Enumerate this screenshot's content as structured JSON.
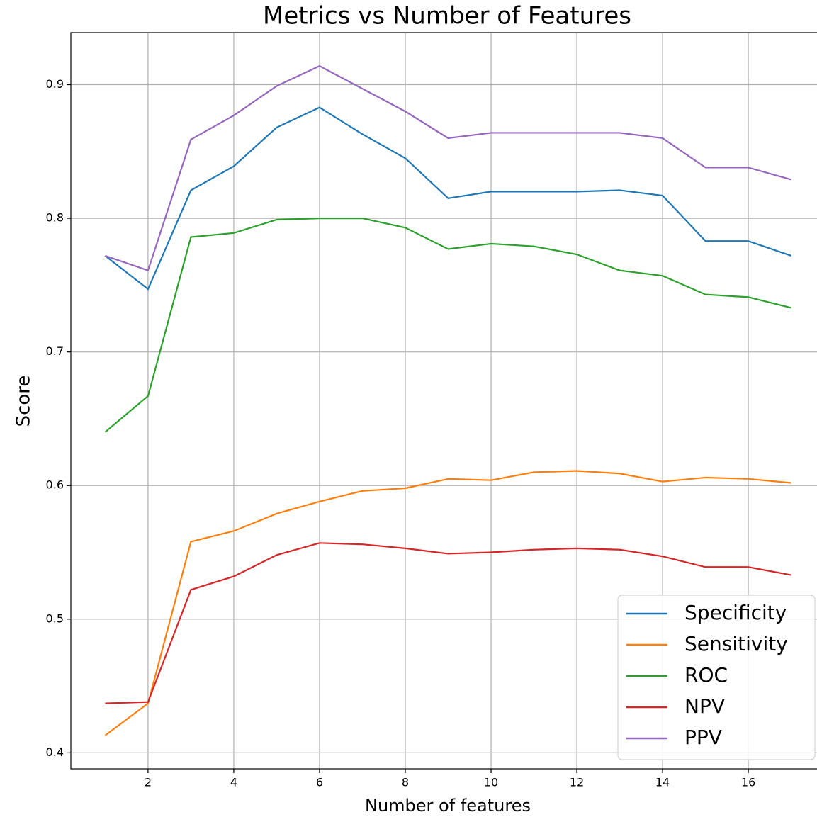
{
  "chart_data": {
    "type": "line",
    "title": "Metrics vs Number of Features",
    "x_label": "Number of features",
    "y_label": "Score",
    "x": [
      1,
      2,
      3,
      4,
      5,
      6,
      7,
      8,
      9,
      10,
      11,
      12,
      13,
      14,
      15,
      16,
      17
    ],
    "series": [
      {
        "name": "Specificity",
        "color": "#1f77b4",
        "values": [
          0.772,
          0.747,
          0.821,
          0.839,
          0.868,
          0.883,
          0.863,
          0.845,
          0.815,
          0.82,
          0.82,
          0.82,
          0.821,
          0.817,
          0.783,
          0.783,
          0.772
        ]
      },
      {
        "name": "Sensitivity",
        "color": "#ff7f0e",
        "values": [
          0.413,
          0.437,
          0.558,
          0.566,
          0.579,
          0.588,
          0.596,
          0.598,
          0.605,
          0.604,
          0.61,
          0.611,
          0.609,
          0.603,
          0.606,
          0.605,
          0.602
        ]
      },
      {
        "name": "ROC",
        "color": "#2ca02c",
        "values": [
          0.64,
          0.667,
          0.786,
          0.789,
          0.799,
          0.8,
          0.8,
          0.793,
          0.777,
          0.781,
          0.779,
          0.773,
          0.761,
          0.757,
          0.743,
          0.741,
          0.733
        ]
      },
      {
        "name": "NPV",
        "color": "#d62728",
        "values": [
          0.437,
          0.438,
          0.522,
          0.532,
          0.548,
          0.557,
          0.556,
          0.553,
          0.549,
          0.55,
          0.552,
          0.553,
          0.552,
          0.547,
          0.539,
          0.539,
          0.533
        ]
      },
      {
        "name": "PPV",
        "color": "#9467bd",
        "values": [
          0.772,
          0.761,
          0.859,
          0.877,
          0.899,
          0.914,
          0.897,
          0.88,
          0.86,
          0.864,
          0.864,
          0.864,
          0.864,
          0.86,
          0.838,
          0.838,
          0.829
        ]
      }
    ],
    "xlim": [
      0.2,
      17.8
    ],
    "ylim": [
      0.388,
      0.939
    ],
    "xticks": [
      2,
      4,
      6,
      8,
      10,
      12,
      14,
      16
    ],
    "yticks": [
      0.4,
      0.5,
      0.6,
      0.7,
      0.8,
      0.9
    ],
    "grid": true,
    "legend": "lower right"
  }
}
